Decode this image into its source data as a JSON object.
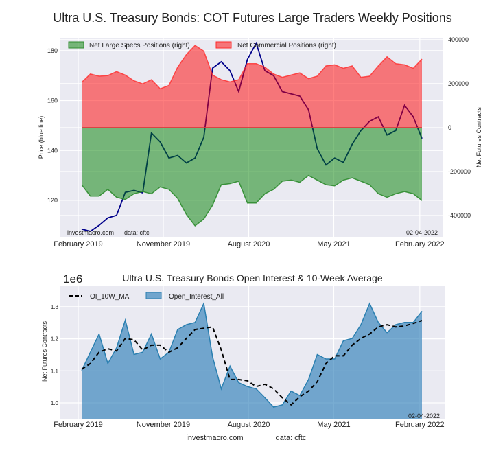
{
  "chart_data": [
    {
      "type": "area",
      "title": "Ultra U.S. Treasury Bonds: COT Futures Large Traders Weekly Positions",
      "ylabel": "Price (blue line)",
      "ylabel_right": "Net Futures Contracts",
      "ylim": [
        105.4,
        185.2
      ],
      "ylim_right": [
        -497000,
        409000
      ],
      "yticks": [
        120,
        140,
        160,
        180
      ],
      "yticks_right": [
        400000,
        200000,
        0,
        -200000,
        -400000
      ],
      "xticks": [
        {
          "label": "February 2019",
          "date": "2019-02-01"
        },
        {
          "label": "November 2019",
          "date": "2019-11-01"
        },
        {
          "label": "August 2020",
          "date": "2020-08-01"
        },
        {
          "label": "May 2021",
          "date": "2021-05-01"
        },
        {
          "label": "February 2022",
          "date": "2022-02-01"
        }
      ],
      "dates": {
        "start": "2019-02-12",
        "step_days": 28
      },
      "grid": true,
      "legend_placement": "top-left",
      "series": [
        {
          "name": "Net Large Specs Positions (right)",
          "color": "#2e8b2e",
          "axis": "right",
          "values": [
            -260000,
            -312000,
            -312000,
            -281000,
            -317000,
            -327000,
            -301000,
            -291000,
            -301000,
            -270000,
            -281000,
            -322000,
            -395000,
            -447000,
            -416000,
            -353000,
            -260000,
            -255000,
            -244000,
            -343000,
            -343000,
            -301000,
            -281000,
            -244000,
            -239000,
            -249000,
            -218000,
            -239000,
            -260000,
            -265000,
            -239000,
            -229000,
            -244000,
            -260000,
            -301000,
            -317000,
            -301000,
            -291000,
            -301000,
            -332000
          ]
        },
        {
          "name": "Net Commercial Positions (right)",
          "color": "#ff2a2a",
          "axis": "right",
          "values": [
            206000,
            244000,
            234000,
            237000,
            255000,
            239000,
            213000,
            199000,
            218000,
            177000,
            192000,
            275000,
            332000,
            374000,
            348000,
            239000,
            218000,
            208000,
            218000,
            291000,
            291000,
            275000,
            244000,
            229000,
            239000,
            249000,
            223000,
            234000,
            281000,
            286000,
            270000,
            281000,
            229000,
            234000,
            281000,
            322000,
            291000,
            286000,
            270000,
            312000
          ]
        },
        {
          "name": "Price",
          "color": "#00008b",
          "axis": "left",
          "values": [
            108.5,
            107.6,
            110,
            113,
            114,
            123.2,
            124,
            123,
            147,
            143.4,
            137,
            138,
            135,
            137,
            145.3,
            173,
            175.6,
            172,
            163.6,
            176.5,
            183,
            172,
            170,
            163.6,
            162.7,
            161.8,
            156.3,
            140.7,
            134.2,
            137,
            135.2,
            142.5,
            148,
            151.7,
            153.5,
            146.2,
            148,
            158.1,
            153.5,
            144.8
          ]
        }
      ],
      "annotations": {
        "source": "investmacro.com",
        "data": "data: cftc",
        "date": "02-04-2022"
      }
    },
    {
      "type": "area",
      "title": "Ultra U.S. Treasury Bonds Open Interest & 10-Week Average",
      "offset_label": "1e6",
      "ylabel": "Net Futures Contracts",
      "ylim": [
        0.951,
        1.379
      ],
      "yticks": [
        1.0,
        1.1,
        1.2,
        1.3
      ],
      "xticks": [
        {
          "label": "February 2019",
          "date": "2019-02-01"
        },
        {
          "label": "November 2019",
          "date": "2019-11-01"
        },
        {
          "label": "August 2020",
          "date": "2020-08-01"
        },
        {
          "label": "May 2021",
          "date": "2021-05-01"
        },
        {
          "label": "February 2022",
          "date": "2022-02-01"
        }
      ],
      "dates": {
        "start": "2019-02-12",
        "step_days": 28
      },
      "grid": true,
      "legend_placement": "top-left",
      "series": [
        {
          "name": "OI_10W_MA",
          "color": "#000000",
          "style": "dashed",
          "values": [
            1.105,
            1.123,
            1.158,
            1.169,
            1.162,
            1.201,
            1.197,
            1.165,
            1.18,
            1.18,
            1.158,
            1.172,
            1.201,
            1.229,
            1.233,
            1.237,
            1.165,
            1.073,
            1.073,
            1.069,
            1.051,
            1.058,
            1.044,
            1.016,
            0.994,
            1.019,
            1.037,
            1.066,
            1.123,
            1.147,
            1.147,
            1.18,
            1.201,
            1.215,
            1.237,
            1.244,
            1.237,
            1.24,
            1.248,
            1.257
          ]
        },
        {
          "name": "Open_Interest_All",
          "color": "#2a7fb0",
          "values": [
            1.101,
            1.158,
            1.215,
            1.123,
            1.172,
            1.258,
            1.151,
            1.158,
            1.215,
            1.137,
            1.158,
            1.229,
            1.244,
            1.251,
            1.31,
            1.144,
            1.044,
            1.115,
            1.063,
            1.051,
            1.044,
            1.016,
            0.987,
            0.994,
            1.037,
            1.023,
            1.073,
            1.151,
            1.137,
            1.137,
            1.194,
            1.201,
            1.244,
            1.31,
            1.251,
            1.219,
            1.244,
            1.251,
            1.251,
            1.286
          ]
        }
      ],
      "annotations": {
        "date": "02-04-2022"
      }
    }
  ],
  "footer": {
    "source": "investmacro.com",
    "data": "data: cftc"
  }
}
